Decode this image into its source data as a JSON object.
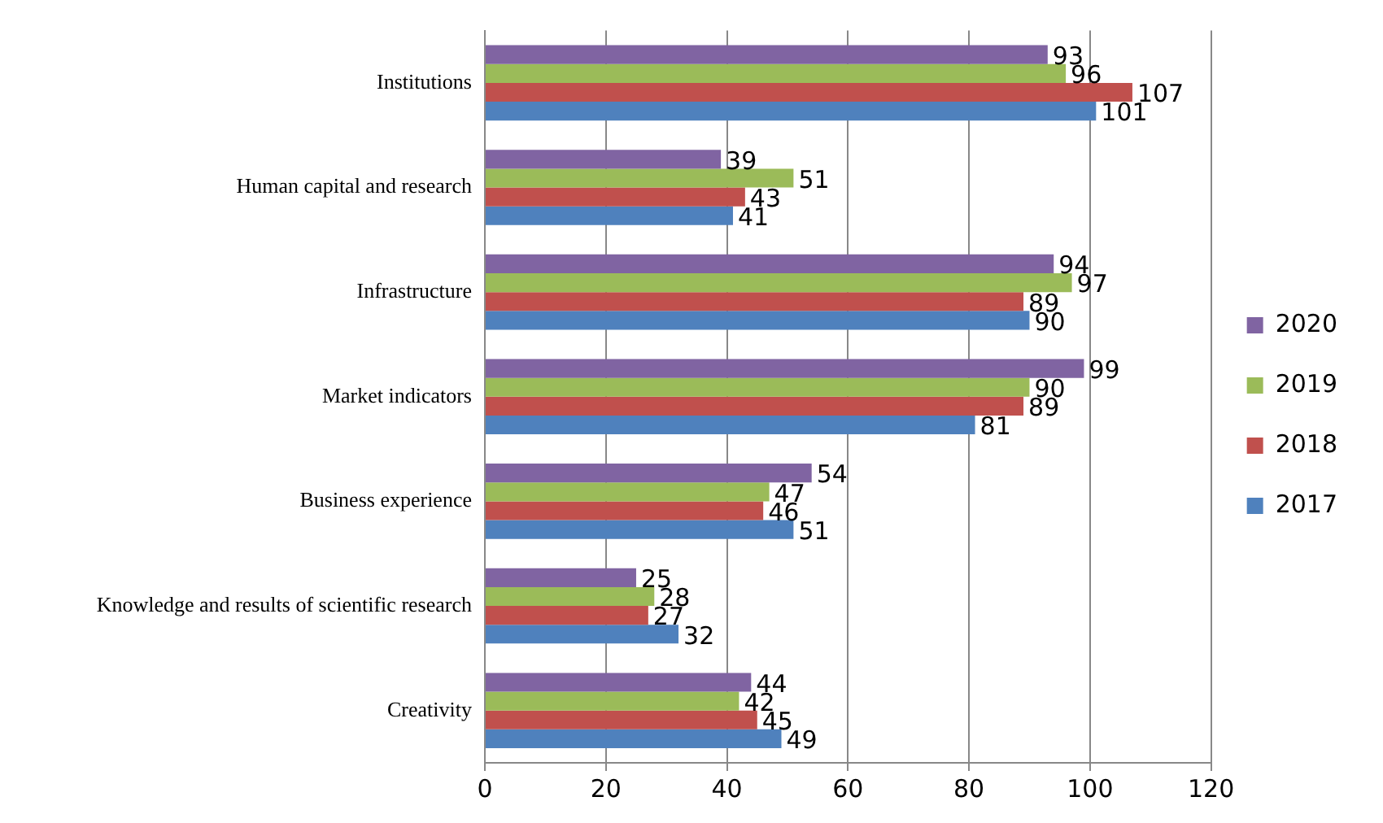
{
  "chart_data": {
    "type": "bar",
    "orientation": "horizontal",
    "categories": [
      "Institutions",
      "Human capital and research",
      "Infrastructure",
      "Market indicators",
      "Business experience",
      "Knowledge and results of scientific research",
      "Creativity"
    ],
    "series": [
      {
        "name": "2020",
        "color": "#8064a2",
        "values": [
          93,
          39,
          94,
          99,
          54,
          25,
          44
        ]
      },
      {
        "name": "2019",
        "color": "#9bbb59",
        "values": [
          96,
          51,
          97,
          90,
          47,
          28,
          42
        ]
      },
      {
        "name": "2018",
        "color": "#c0504d",
        "values": [
          107,
          43,
          89,
          89,
          46,
          27,
          45
        ]
      },
      {
        "name": "2017",
        "color": "#4f81bd",
        "values": [
          101,
          41,
          90,
          81,
          51,
          32,
          49
        ]
      }
    ],
    "xlim": [
      0,
      120
    ],
    "xticks": [
      0,
      20,
      40,
      60,
      80,
      100,
      120
    ],
    "grid": "x",
    "legend": "right",
    "data_labels": true
  }
}
